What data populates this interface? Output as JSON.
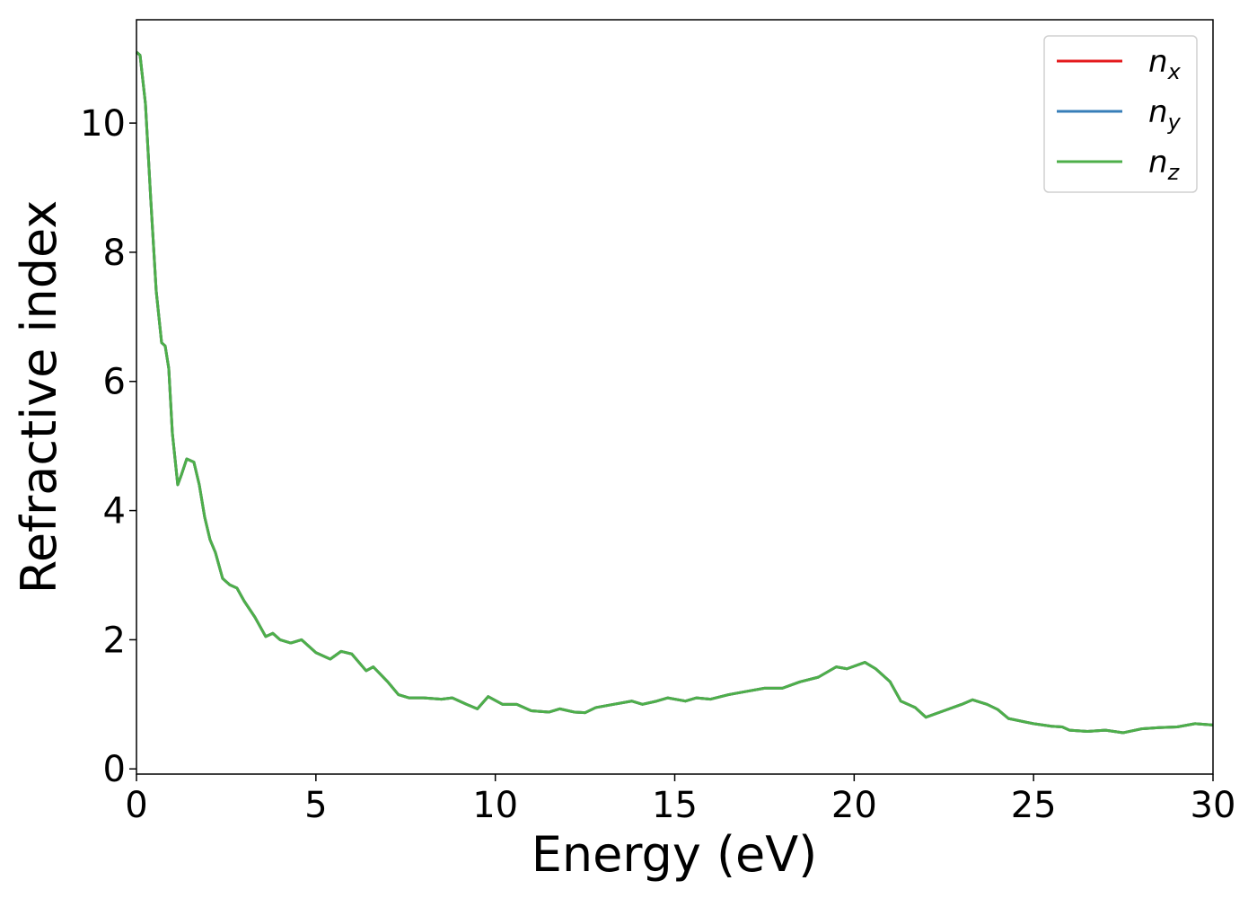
{
  "chart_data": {
    "type": "line",
    "x_label": "Energy (eV)",
    "y_label": "Refractive index",
    "x": [
      0,
      0.1,
      0.25,
      0.4,
      0.55,
      0.7,
      0.8,
      0.9,
      1.0,
      1.15,
      1.25,
      1.4,
      1.6,
      1.75,
      1.9,
      2.05,
      2.2,
      2.4,
      2.6,
      2.8,
      3.0,
      3.3,
      3.6,
      3.8,
      4.0,
      4.3,
      4.6,
      5.0,
      5.4,
      5.7,
      6.0,
      6.4,
      6.6,
      7.0,
      7.3,
      7.6,
      8.0,
      8.5,
      8.8,
      9.2,
      9.5,
      9.8,
      10.2,
      10.6,
      11.0,
      11.5,
      11.8,
      12.2,
      12.5,
      12.8,
      13.3,
      13.8,
      14.1,
      14.5,
      14.8,
      15.3,
      15.6,
      16.0,
      16.5,
      17.0,
      17.5,
      18.0,
      18.5,
      19.0,
      19.5,
      19.8,
      20.3,
      20.6,
      21.0,
      21.3,
      21.7,
      22.0,
      22.5,
      23.0,
      23.3,
      23.7,
      24.0,
      24.3,
      25.0,
      25.5,
      25.8,
      26.0,
      26.5,
      27.0,
      27.5,
      28.0,
      28.5,
      29.0,
      29.5,
      30.0
    ],
    "series": [
      {
        "name": "nx",
        "color": "#e41a1c",
        "values": [
          11.1,
          11.05,
          10.3,
          8.8,
          7.4,
          6.6,
          6.55,
          6.2,
          5.2,
          4.4,
          4.55,
          4.8,
          4.75,
          4.4,
          3.9,
          3.55,
          3.35,
          2.95,
          2.85,
          2.8,
          2.6,
          2.35,
          2.05,
          2.1,
          2.0,
          1.95,
          2.0,
          1.8,
          1.7,
          1.82,
          1.78,
          1.52,
          1.58,
          1.35,
          1.15,
          1.1,
          1.1,
          1.08,
          1.1,
          1.0,
          0.93,
          1.12,
          1.0,
          1.0,
          0.9,
          0.88,
          0.93,
          0.88,
          0.87,
          0.95,
          1.0,
          1.05,
          1.0,
          1.05,
          1.1,
          1.05,
          1.1,
          1.08,
          1.15,
          1.2,
          1.25,
          1.25,
          1.35,
          1.42,
          1.58,
          1.55,
          1.65,
          1.55,
          1.35,
          1.05,
          0.95,
          0.8,
          0.9,
          1.0,
          1.07,
          1.0,
          0.92,
          0.78,
          0.7,
          0.66,
          0.65,
          0.6,
          0.58,
          0.6,
          0.56,
          0.62,
          0.64,
          0.65,
          0.7,
          0.68
        ]
      },
      {
        "name": "ny",
        "color": "#377eb8",
        "values": [
          11.1,
          11.05,
          10.3,
          8.8,
          7.4,
          6.6,
          6.55,
          6.2,
          5.2,
          4.4,
          4.55,
          4.8,
          4.75,
          4.4,
          3.9,
          3.55,
          3.35,
          2.95,
          2.85,
          2.8,
          2.6,
          2.35,
          2.05,
          2.1,
          2.0,
          1.95,
          2.0,
          1.8,
          1.7,
          1.82,
          1.78,
          1.52,
          1.58,
          1.35,
          1.15,
          1.1,
          1.1,
          1.08,
          1.1,
          1.0,
          0.93,
          1.12,
          1.0,
          1.0,
          0.9,
          0.88,
          0.93,
          0.88,
          0.87,
          0.95,
          1.0,
          1.05,
          1.0,
          1.05,
          1.1,
          1.05,
          1.1,
          1.08,
          1.15,
          1.2,
          1.25,
          1.25,
          1.35,
          1.42,
          1.58,
          1.55,
          1.65,
          1.55,
          1.35,
          1.05,
          0.95,
          0.8,
          0.9,
          1.0,
          1.07,
          1.0,
          0.92,
          0.78,
          0.7,
          0.66,
          0.65,
          0.6,
          0.58,
          0.6,
          0.56,
          0.62,
          0.64,
          0.65,
          0.7,
          0.68
        ]
      },
      {
        "name": "nz",
        "color": "#4daf4a",
        "values": [
          11.1,
          11.05,
          10.3,
          8.8,
          7.4,
          6.6,
          6.55,
          6.2,
          5.2,
          4.4,
          4.55,
          4.8,
          4.75,
          4.4,
          3.9,
          3.55,
          3.35,
          2.95,
          2.85,
          2.8,
          2.6,
          2.35,
          2.05,
          2.1,
          2.0,
          1.95,
          2.0,
          1.8,
          1.7,
          1.82,
          1.78,
          1.52,
          1.58,
          1.35,
          1.15,
          1.1,
          1.1,
          1.08,
          1.1,
          1.0,
          0.93,
          1.12,
          1.0,
          1.0,
          0.9,
          0.88,
          0.93,
          0.88,
          0.87,
          0.95,
          1.0,
          1.05,
          1.0,
          1.05,
          1.1,
          1.05,
          1.1,
          1.08,
          1.15,
          1.2,
          1.25,
          1.25,
          1.35,
          1.42,
          1.58,
          1.55,
          1.65,
          1.55,
          1.35,
          1.05,
          0.95,
          0.8,
          0.9,
          1.0,
          1.07,
          1.0,
          0.92,
          0.78,
          0.7,
          0.66,
          0.65,
          0.6,
          0.58,
          0.6,
          0.56,
          0.62,
          0.64,
          0.65,
          0.7,
          0.68
        ]
      }
    ],
    "xlim": [
      0,
      30
    ],
    "xticks": [
      0,
      5,
      10,
      15,
      20,
      25,
      30
    ],
    "ylim": [
      -0.08,
      11.6
    ],
    "yticks": [
      0,
      2,
      4,
      6,
      8,
      10
    ],
    "grid": false,
    "legend": "upper right"
  }
}
